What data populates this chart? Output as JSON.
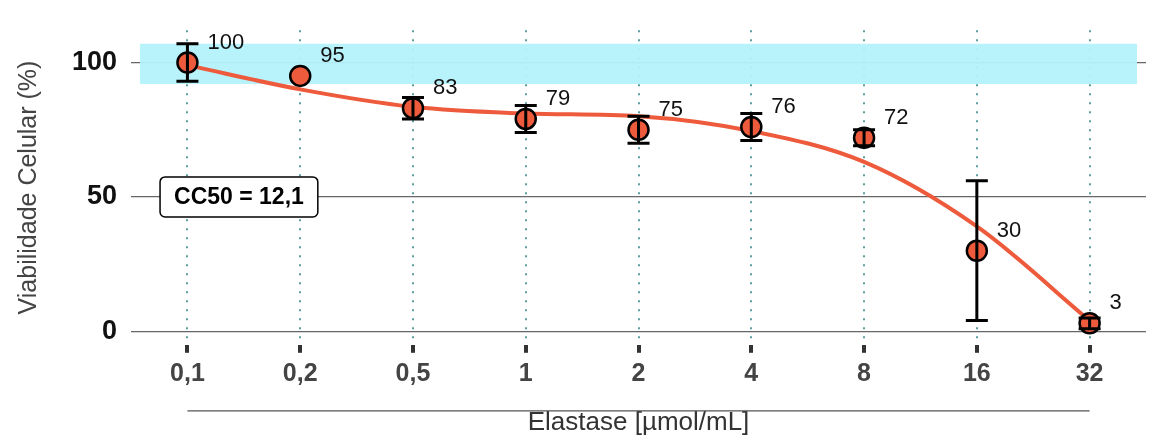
{
  "chart_data": {
    "type": "scatter",
    "xlabel": "Elastase [µmol/mL]",
    "ylabel": "Viabilidade Celular (%)",
    "categories": [
      "0,1",
      "0,2",
      "0,5",
      "1",
      "2",
      "4",
      "8",
      "16",
      "32"
    ],
    "series": [
      {
        "type": "line",
        "color": "#ee5a3c",
        "values": [
          99,
          90,
          83.5,
          81,
          80,
          74.5,
          63,
          39,
          4
        ],
        "marker": "none"
      },
      {
        "color": "#ee5a3c",
        "marker": "circle",
        "values": [
          100,
          95,
          83,
          79,
          75,
          76,
          72,
          30,
          3
        ],
        "errors": [
          7,
          null,
          4,
          5,
          5,
          5,
          3,
          26,
          2
        ],
        "value_labels": [
          "100",
          "95",
          "83",
          "79",
          "75",
          "76",
          "72",
          "30",
          "3"
        ]
      }
    ],
    "ylim": [
      -5,
      112
    ],
    "yticks": [
      0,
      50,
      100
    ],
    "grid": true,
    "legend": false,
    "bands": [
      {
        "axis": "y",
        "from": 92,
        "to": 107,
        "color": "#b4f1fa"
      }
    ],
    "annotations": [
      "CC50 = 12,1"
    ]
  }
}
